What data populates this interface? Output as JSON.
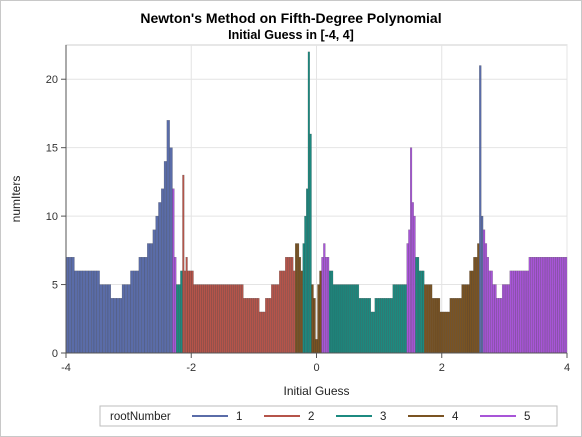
{
  "header": {
    "title": "Newton's Method on Fifth-Degree Polynomial",
    "subtitle": "Initial Guess in [-4, 4]"
  },
  "chart_data": {
    "type": "bar",
    "title": "Newton's Method on Fifth-Degree Polynomial",
    "subtitle": "Initial Guess in [-4, 4]",
    "xlabel": "Initial Guess",
    "ylabel": "numIters",
    "xlim": [
      -4,
      4
    ],
    "ylim": [
      0,
      22.5
    ],
    "x_ticks": [
      -4,
      -2,
      0,
      2,
      4
    ],
    "y_ticks": [
      0,
      5,
      10,
      15,
      20
    ],
    "grid": true,
    "legend": {
      "title": "rootNumber",
      "placement": "bottom",
      "entries": [
        "1",
        "2",
        "3",
        "4",
        "5"
      ]
    },
    "colors": {
      "1": "#5a6ca8",
      "2": "#b5544a",
      "3": "#1c8a80",
      "4": "#7a5322",
      "5": "#a855d8"
    },
    "segments": [
      {
        "x0": -4.0,
        "x1": -2.3,
        "root": "1",
        "values": [
          7,
          7,
          7,
          6,
          6,
          6,
          6,
          6,
          6,
          6,
          6,
          6,
          5,
          5,
          5,
          5,
          4,
          4,
          4,
          4,
          5,
          5,
          5,
          6,
          6,
          6,
          7,
          7,
          7,
          8,
          8,
          9,
          10,
          11,
          12,
          14,
          17,
          15
        ]
      },
      {
        "x0": -2.3,
        "x1": -2.24,
        "root": "5",
        "values": [
          12,
          7
        ]
      },
      {
        "x0": -2.24,
        "x1": -2.14,
        "root": "3",
        "values": [
          5,
          5,
          6
        ]
      },
      {
        "x0": -2.14,
        "x1": -2.06,
        "root": "2",
        "values": [
          13,
          6,
          7
        ]
      },
      {
        "x0": -2.06,
        "x1": -0.34,
        "root": "2",
        "values": [
          6,
          6,
          6,
          5,
          5,
          5,
          5,
          5,
          5,
          5,
          5,
          5,
          5,
          5,
          5,
          5,
          5,
          5,
          5,
          5,
          5,
          5,
          5,
          5,
          5,
          5,
          5,
          5,
          4,
          4,
          4,
          4,
          4,
          4,
          4,
          4,
          3,
          3,
          3,
          4,
          4,
          4,
          5,
          5,
          5,
          5,
          6,
          6,
          6,
          7,
          7,
          7,
          7,
          6
        ]
      },
      {
        "x0": -0.34,
        "x1": -0.22,
        "root": "4",
        "values": [
          8,
          8,
          7,
          6
        ]
      },
      {
        "x0": -0.22,
        "x1": -0.08,
        "root": "3",
        "values": [
          8,
          10,
          12,
          22,
          16
        ]
      },
      {
        "x0": -0.08,
        "x1": 0.08,
        "root": "4",
        "values": [
          5,
          4,
          1,
          5,
          6
        ]
      },
      {
        "x0": 0.08,
        "x1": 0.2,
        "root": "5",
        "values": [
          7,
          8,
          7,
          7
        ]
      },
      {
        "x0": 0.2,
        "x1": 1.44,
        "root": "3",
        "values": [
          6,
          6,
          5,
          5,
          5,
          5,
          5,
          5,
          5,
          5,
          5,
          5,
          5,
          5,
          5,
          4,
          4,
          4,
          4,
          4,
          4,
          3,
          3,
          4,
          4,
          4,
          4,
          4,
          4,
          4,
          4,
          4,
          5,
          5,
          5,
          5,
          5,
          5,
          5
        ]
      },
      {
        "x0": 1.44,
        "x1": 1.58,
        "root": "5",
        "values": [
          8,
          9,
          15,
          11,
          10
        ]
      },
      {
        "x0": 1.58,
        "x1": 1.72,
        "root": "3",
        "values": [
          7,
          7,
          6,
          6,
          6
        ]
      },
      {
        "x0": 1.72,
        "x1": 2.6,
        "root": "4",
        "values": [
          5,
          5,
          5,
          5,
          4,
          4,
          4,
          4,
          3,
          3,
          3,
          3,
          3,
          4,
          4,
          4,
          4,
          4,
          4,
          5,
          5,
          5,
          5,
          6,
          6,
          7,
          7,
          8
        ]
      },
      {
        "x0": 2.6,
        "x1": 2.66,
        "root": "1",
        "values": [
          21,
          10
        ]
      },
      {
        "x0": 2.66,
        "x1": 4.0,
        "root": "5",
        "values": [
          9,
          8,
          7,
          6,
          6,
          5,
          5,
          4,
          4,
          4,
          5,
          5,
          5,
          5,
          6,
          6,
          6,
          6,
          6,
          6,
          6,
          6,
          6,
          6,
          7,
          7,
          7,
          7,
          7,
          7,
          7,
          7,
          7,
          7,
          7,
          7,
          7,
          7,
          7,
          7,
          7,
          7,
          7,
          7
        ]
      }
    ]
  }
}
